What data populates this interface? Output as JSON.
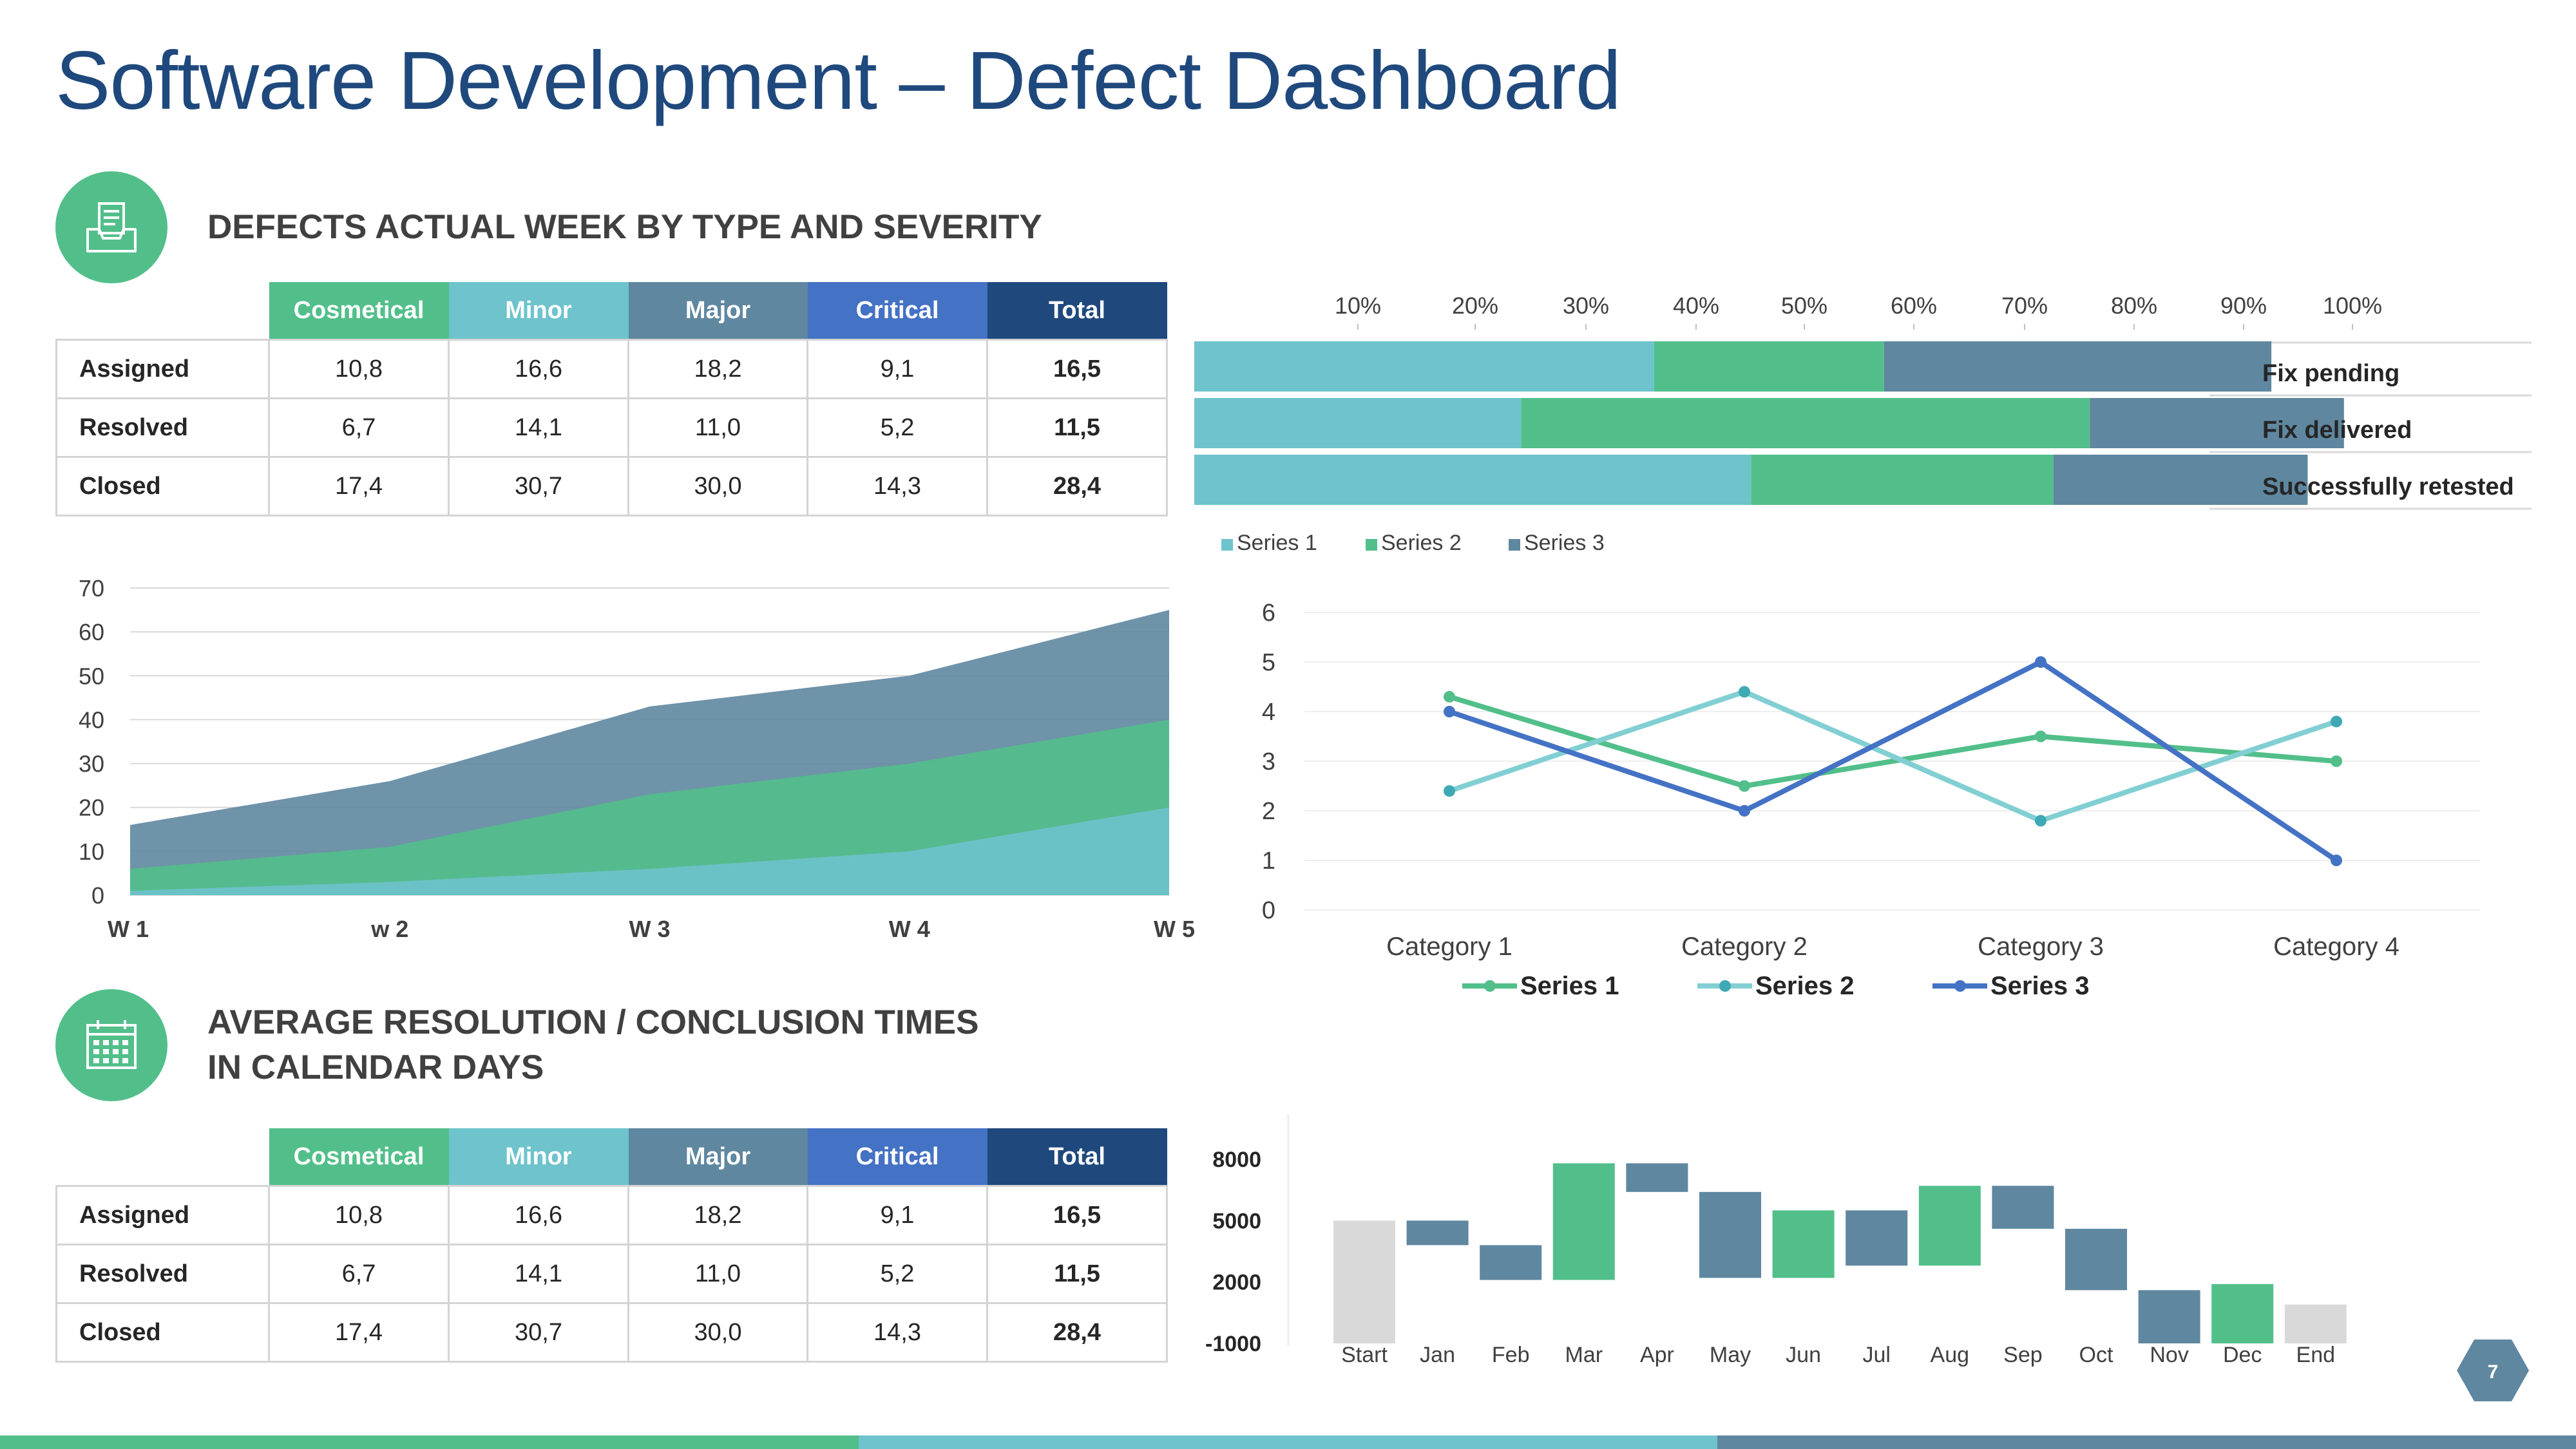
{
  "title": "Software Development – Defect Dashboard",
  "section1": {
    "title": "DEFECTS ACTUAL WEEK BY TYPE AND SEVERITY",
    "icon": "inbox-document-icon"
  },
  "section2": {
    "title_line1": "AVERAGE RESOLUTION / CONCLUSION TIMES",
    "title_line2": "IN CALENDAR DAYS",
    "icon": "calendar-icon"
  },
  "table1": {
    "headers": [
      "Cosmetical",
      "Minor",
      "Major",
      "Critical",
      "Total"
    ],
    "rows": [
      {
        "label": "Assigned",
        "values": [
          "10,8",
          "16,6",
          "18,2",
          "9,1",
          "16,5"
        ]
      },
      {
        "label": "Resolved",
        "values": [
          "6,7",
          "14,1",
          "11,0",
          "5,2",
          "11,5"
        ]
      },
      {
        "label": "Closed",
        "values": [
          "17,4",
          "30,7",
          "30,0",
          "14,3",
          "28,4"
        ]
      }
    ]
  },
  "table2": {
    "headers": [
      "Cosmetical",
      "Minor",
      "Major",
      "Critical",
      "Total"
    ],
    "rows": [
      {
        "label": "Assigned",
        "values": [
          "10,8",
          "16,6",
          "18,2",
          "9,1",
          "16,5"
        ]
      },
      {
        "label": "Resolved",
        "values": [
          "6,7",
          "14,1",
          "11,0",
          "5,2",
          "11,5"
        ]
      },
      {
        "label": "Closed",
        "values": [
          "17,4",
          "30,7",
          "30,0",
          "14,3",
          "28,4"
        ]
      }
    ]
  },
  "colors": {
    "title": "#1f497d",
    "green": "#52bf8a",
    "teal": "#6ec3cc",
    "slate": "#5f87a0",
    "blue": "#4472c4",
    "navy": "#1f497d",
    "gray": "#d9d9d9"
  },
  "page_number": "7",
  "chart_data": [
    {
      "type": "bar",
      "orientation": "horizontal",
      "stacked": true,
      "categories": [
        "Fix pending",
        "Fix delivered",
        "Successfully retested"
      ],
      "series": [
        {
          "name": "Series 1",
          "values": [
            38,
            27,
            46
          ]
        },
        {
          "name": "Series 2",
          "values": [
            19,
            47,
            25
          ]
        },
        {
          "name": "Series 3",
          "values": [
            32,
            21,
            21
          ]
        }
      ],
      "axis_ticks": [
        "10%",
        "20%",
        "30%",
        "40%",
        "50%",
        "60%",
        "70%",
        "80%",
        "90%",
        "100%"
      ],
      "legend": "bottom-left"
    },
    {
      "type": "area",
      "stacked": true,
      "categories": [
        "W 1",
        "w 2",
        "W 3",
        "W 4",
        "W 5"
      ],
      "series": [
        {
          "values": [
            1,
            3,
            6,
            10,
            20
          ]
        },
        {
          "values": [
            6,
            11,
            23,
            30,
            40
          ]
        },
        {
          "values": [
            16,
            26,
            43,
            50,
            65
          ]
        }
      ],
      "ylim": [
        0,
        70
      ],
      "yticks": [
        0,
        10,
        20,
        30,
        40,
        50,
        60,
        70
      ],
      "grid": true
    },
    {
      "type": "line",
      "categories": [
        "Category 1",
        "Category 2",
        "Category 3",
        "Category 4"
      ],
      "series": [
        {
          "name": "Series 1",
          "values": [
            4.3,
            2.5,
            3.5,
            3.0
          ]
        },
        {
          "name": "Series 2",
          "values": [
            2.4,
            4.4,
            1.8,
            3.8
          ]
        },
        {
          "name": "Series 3",
          "values": [
            4.0,
            2.0,
            5.0,
            1.0
          ]
        }
      ],
      "ylim": [
        0,
        6
      ],
      "yticks": [
        0,
        1,
        2,
        3,
        4,
        5,
        6
      ],
      "legend": "bottom",
      "grid": true
    },
    {
      "type": "bar",
      "subtype": "waterfall",
      "categories": [
        "Start",
        "Jan",
        "Feb",
        "Mar",
        "Apr",
        "May",
        "Jun",
        "Jul",
        "Aug",
        "Sep",
        "Oct",
        "Nov",
        "Dec",
        "End"
      ],
      "ranges": [
        [
          -1000,
          5000
        ],
        [
          5000,
          3800
        ],
        [
          3800,
          2100
        ],
        [
          2100,
          7800
        ],
        [
          7800,
          6400
        ],
        [
          6400,
          2200
        ],
        [
          2200,
          5500
        ],
        [
          5500,
          2800
        ],
        [
          2800,
          6700
        ],
        [
          6700,
          4600
        ],
        [
          4600,
          1600
        ],
        [
          1600,
          -1000
        ],
        [
          -1000,
          1900
        ],
        [
          -1000,
          900
        ]
      ],
      "kinds": [
        "total",
        "dec",
        "dec",
        "inc",
        "dec",
        "dec",
        "inc",
        "dec",
        "inc",
        "dec",
        "dec",
        "dec",
        "inc",
        "total"
      ],
      "yticks": [
        "8000",
        "5000",
        "2000",
        "-1000"
      ],
      "ylim": [
        -1000,
        9000
      ]
    }
  ]
}
